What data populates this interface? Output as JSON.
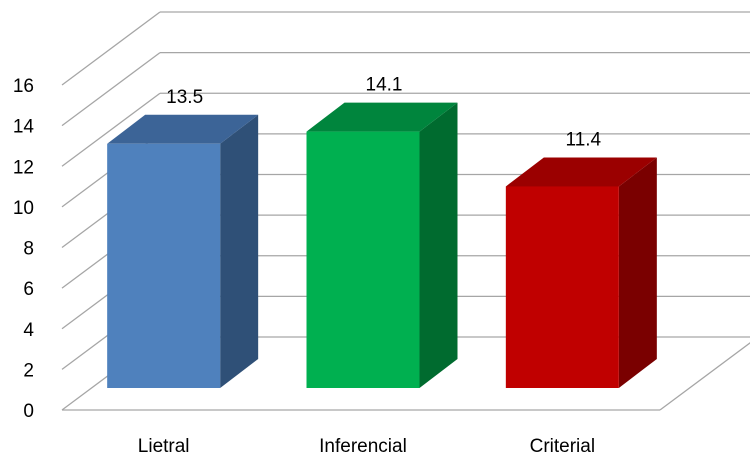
{
  "chart_data": {
    "type": "bar",
    "title": "",
    "xlabel": "",
    "ylabel": "",
    "categories": [
      "Lietral",
      "Inferencial",
      "Criterial"
    ],
    "values": [
      13.5,
      14.1,
      11.4
    ],
    "value_labels": [
      "13.5",
      "14.1",
      "11.4"
    ],
    "ylim": [
      0,
      16
    ],
    "yticks": [
      "0",
      "2",
      "4",
      "6",
      "8",
      "10",
      "12",
      "14",
      "16"
    ],
    "grid": true,
    "legend": "none",
    "style": "3d-column",
    "colors": {
      "bars": [
        {
          "front": "#4F81BD",
          "side": "#2F5077",
          "top": "#3C6497"
        },
        {
          "front": "#00B050",
          "side": "#006B2F",
          "top": "#00853D"
        },
        {
          "front": "#C00000",
          "side": "#7A0000",
          "top": "#9B0000"
        }
      ],
      "grid": "#A6A6A6",
      "text": "#000000"
    }
  }
}
